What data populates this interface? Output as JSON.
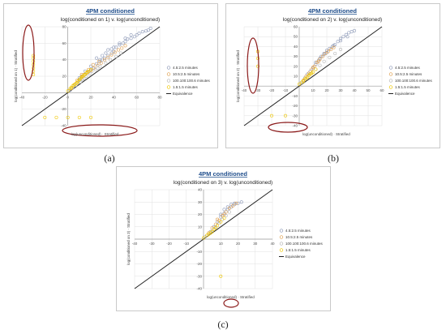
{
  "chart_data": [
    {
      "type": "scatter",
      "title": "4PM conditioned",
      "subtitle": "log(conditioned on 1) v. log(unconditioned)",
      "xlabel": "log(unconditioned) · Stratified",
      "ylabel": "log(conditioned on 1) · Stratified",
      "xlim": [
        -40,
        80
      ],
      "ylim": [
        -40,
        80
      ],
      "x_ticks": [
        "-40",
        "-20",
        "0",
        "20",
        "40",
        "60",
        "80"
      ],
      "y_ticks": [
        "-40",
        "-20",
        "20",
        "40",
        "60",
        "80"
      ],
      "grid": true,
      "legend_position": "right",
      "series": [
        {
          "name": "4.5:2.5 minutes",
          "color": "#8e9ab8",
          "points": [
            [
              2,
              3
            ],
            [
              5,
              8
            ],
            [
              8,
              12
            ],
            [
              10,
              15
            ],
            [
              12,
              20
            ],
            [
              15,
              22
            ],
            [
              18,
              25
            ],
            [
              20,
              28
            ],
            [
              22,
              30
            ],
            [
              25,
              35
            ],
            [
              28,
              38
            ],
            [
              30,
              40
            ],
            [
              32,
              42
            ],
            [
              35,
              45
            ],
            [
              38,
              48
            ],
            [
              40,
              50
            ],
            [
              42,
              55
            ],
            [
              45,
              58
            ],
            [
              48,
              60
            ],
            [
              50,
              62
            ],
            [
              52,
              65
            ],
            [
              55,
              66
            ],
            [
              58,
              68
            ],
            [
              60,
              70
            ],
            [
              62,
              72
            ],
            [
              65,
              74
            ],
            [
              68,
              75
            ],
            [
              70,
              76
            ],
            [
              72,
              78
            ],
            [
              30,
              45
            ],
            [
              25,
              42
            ],
            [
              35,
              52
            ],
            [
              40,
              55
            ],
            [
              20,
              32
            ],
            [
              15,
              26
            ],
            [
              10,
              18
            ],
            [
              45,
              60
            ],
            [
              50,
              66
            ],
            [
              55,
              70
            ],
            [
              28,
              40
            ],
            [
              33,
              48
            ],
            [
              38,
              53
            ]
          ]
        },
        {
          "name": "10.5:2.5 minutes",
          "color": "#e0a050",
          "points": [
            [
              3,
              5
            ],
            [
              6,
              10
            ],
            [
              9,
              14
            ],
            [
              12,
              18
            ],
            [
              14,
              22
            ],
            [
              17,
              24
            ],
            [
              20,
              27
            ],
            [
              23,
              30
            ],
            [
              26,
              33
            ],
            [
              29,
              36
            ],
            [
              32,
              40
            ],
            [
              35,
              43
            ],
            [
              38,
              46
            ],
            [
              41,
              49
            ],
            [
              44,
              52
            ],
            [
              47,
              54
            ],
            [
              50,
              57
            ],
            [
              18,
              28
            ],
            [
              22,
              34
            ],
            [
              27,
              38
            ],
            [
              12,
              22
            ],
            [
              8,
              15
            ]
          ]
        },
        {
          "name": "100.100:100.6 minutes",
          "color": "#b5b5b5",
          "points": [
            [
              1,
              2
            ],
            [
              4,
              6
            ],
            [
              7,
              9
            ],
            [
              11,
              13
            ],
            [
              14,
              17
            ],
            [
              16,
              20
            ],
            [
              19,
              23
            ],
            [
              24,
              28
            ],
            [
              28,
              32
            ],
            [
              33,
              36
            ],
            [
              37,
              40
            ],
            [
              42,
              44
            ],
            [
              46,
              48
            ],
            [
              9,
              12
            ],
            [
              13,
              16
            ],
            [
              21,
              26
            ],
            [
              26,
              30
            ]
          ]
        },
        {
          "name": "1.5:1.5 minutes",
          "color": "#f0c800",
          "points": [
            [
              0,
              2
            ],
            [
              2,
              5
            ],
            [
              4,
              8
            ],
            [
              6,
              10
            ],
            [
              8,
              12
            ],
            [
              10,
              16
            ],
            [
              12,
              19
            ],
            [
              14,
              21
            ],
            [
              16,
              24
            ],
            [
              18,
              26
            ],
            [
              20,
              28
            ],
            [
              5,
              9
            ],
            [
              7,
              11
            ],
            [
              9,
              14
            ],
            [
              11,
              17
            ],
            [
              13,
              20
            ],
            [
              3,
              6
            ],
            [
              15,
              22
            ],
            [
              17,
              25
            ],
            [
              -30,
              30
            ],
            [
              -30,
              34
            ],
            [
              -30,
              38
            ],
            [
              -30,
              26
            ],
            [
              -30,
              22
            ],
            [
              -30,
              45
            ],
            [
              -30,
              42
            ],
            [
              -20,
              -30
            ],
            [
              -10,
              -30
            ],
            [
              0,
              -30
            ],
            [
              10,
              -30
            ],
            [
              20,
              -30
            ]
          ]
        }
      ],
      "annotations": [
        "equivalence line",
        "circled outliers"
      ]
    },
    {
      "type": "scatter",
      "title": "4PM conditioned",
      "subtitle": "log(conditioned on 2) v. log(unconditioned)",
      "xlabel": "log(unconditioned) · Stratified",
      "ylabel": "log(conditioned on 2) · Stratified",
      "xlim": [
        -40,
        60
      ],
      "ylim": [
        -40,
        60
      ],
      "x_ticks": [
        "-40",
        "-30",
        "-20",
        "-10",
        "10",
        "20",
        "30",
        "40",
        "50",
        "60"
      ],
      "y_ticks": [
        "-40",
        "-30",
        "-20",
        "-10",
        "10",
        "20",
        "30",
        "40",
        "50",
        "60"
      ],
      "grid": true,
      "legend_position": "right",
      "series": [
        {
          "name": "4.5:2.5 minutes",
          "color": "#8e9ab8",
          "points": [
            [
              2,
              4
            ],
            [
              4,
              8
            ],
            [
              6,
              12
            ],
            [
              8,
              15
            ],
            [
              10,
              18
            ],
            [
              12,
              22
            ],
            [
              14,
              26
            ],
            [
              16,
              30
            ],
            [
              18,
              33
            ],
            [
              20,
              36
            ],
            [
              22,
              38
            ],
            [
              24,
              40
            ],
            [
              26,
              42
            ],
            [
              28,
              45
            ],
            [
              30,
              48
            ],
            [
              32,
              50
            ],
            [
              34,
              52
            ],
            [
              36,
              54
            ],
            [
              38,
              55
            ],
            [
              40,
              56
            ],
            [
              15,
              28
            ],
            [
              20,
              34
            ],
            [
              25,
              41
            ],
            [
              30,
              46
            ],
            [
              35,
              50
            ],
            [
              12,
              24
            ],
            [
              18,
              32
            ]
          ]
        },
        {
          "name": "10.5:2.5 minutes",
          "color": "#e0a050",
          "points": [
            [
              3,
              6
            ],
            [
              5,
              10
            ],
            [
              7,
              13
            ],
            [
              9,
              17
            ],
            [
              11,
              20
            ],
            [
              13,
              24
            ],
            [
              15,
              27
            ],
            [
              17,
              30
            ],
            [
              19,
              33
            ],
            [
              21,
              35
            ],
            [
              23,
              37
            ],
            [
              25,
              39
            ],
            [
              10,
              19
            ],
            [
              14,
              25
            ]
          ]
        },
        {
          "name": "100.100:100.6 minutes",
          "color": "#b5b5b5",
          "points": [
            [
              1,
              3
            ],
            [
              3,
              5
            ],
            [
              6,
              9
            ],
            [
              9,
              13
            ],
            [
              12,
              17
            ],
            [
              15,
              21
            ],
            [
              18,
              25
            ],
            [
              22,
              29
            ],
            [
              26,
              33
            ],
            [
              30,
              37
            ]
          ]
        },
        {
          "name": "1.5:1.5 minutes",
          "color": "#f0c800",
          "points": [
            [
              0,
              2
            ],
            [
              2,
              4
            ],
            [
              4,
              7
            ],
            [
              6,
              9
            ],
            [
              8,
              12
            ],
            [
              10,
              14
            ],
            [
              12,
              17
            ],
            [
              5,
              8
            ],
            [
              7,
              11
            ],
            [
              9,
              13
            ],
            [
              3,
              5
            ],
            [
              -30,
              35
            ],
            [
              -30,
              28
            ],
            [
              -30,
              20
            ],
            [
              -20,
              -30
            ],
            [
              -10,
              -30
            ]
          ]
        }
      ],
      "annotations": [
        "equivalence line",
        "circled outliers"
      ]
    },
    {
      "type": "scatter",
      "title": "4PM conditioned",
      "subtitle": "log(conditioned on 3) v. log(unconditioned)",
      "xlabel": "log(unconditioned) · Stratified",
      "ylabel": "log(conditioned on 3) · Stratified",
      "xlim": [
        -40,
        40
      ],
      "ylim": [
        -40,
        40
      ],
      "x_ticks": [
        "-40",
        "-30",
        "-20",
        "-10",
        "10",
        "20",
        "30",
        "40"
      ],
      "y_ticks": [
        "-40",
        "-30",
        "-20",
        "-10",
        "10",
        "20",
        "30",
        "40"
      ],
      "grid": true,
      "legend_position": "right",
      "series": [
        {
          "name": "4.5:2.5 minutes",
          "color": "#8e9ab8",
          "points": [
            [
              2,
              3
            ],
            [
              4,
              6
            ],
            [
              6,
              10
            ],
            [
              8,
              14
            ],
            [
              10,
              18
            ],
            [
              12,
              21
            ],
            [
              14,
              24
            ],
            [
              16,
              26
            ],
            [
              18,
              28
            ],
            [
              20,
              29
            ],
            [
              22,
              30
            ],
            [
              10,
              20
            ],
            [
              14,
              26
            ],
            [
              16,
              28
            ],
            [
              12,
              24
            ],
            [
              18,
              29
            ]
          ]
        },
        {
          "name": "10.5:2.5 minutes",
          "color": "#e0a050",
          "points": [
            [
              3,
              5
            ],
            [
              5,
              9
            ],
            [
              7,
              12
            ],
            [
              9,
              15
            ],
            [
              11,
              19
            ],
            [
              13,
              22
            ],
            [
              15,
              25
            ],
            [
              17,
              27
            ],
            [
              19,
              29
            ],
            [
              8,
              16
            ],
            [
              12,
              20
            ]
          ]
        },
        {
          "name": "100.100:100.6 minutes",
          "color": "#b5b5b5",
          "points": [
            [
              1,
              2
            ],
            [
              3,
              4
            ],
            [
              5,
              7
            ],
            [
              7,
              10
            ],
            [
              9,
              13
            ],
            [
              11,
              16
            ],
            [
              13,
              19
            ],
            [
              15,
              22
            ]
          ]
        },
        {
          "name": "1.5:1.5 minutes",
          "color": "#f0c800",
          "points": [
            [
              0,
              1
            ],
            [
              2,
              3
            ],
            [
              4,
              5
            ],
            [
              6,
              8
            ],
            [
              8,
              11
            ],
            [
              10,
              14
            ],
            [
              12,
              17
            ],
            [
              5,
              6
            ],
            [
              7,
              9
            ],
            [
              3,
              4
            ],
            [
              10,
              -30
            ]
          ]
        }
      ],
      "annotations": [
        "equivalence line",
        "circled outlier"
      ]
    }
  ],
  "legend_equivalence_label": "Equivalence",
  "captions": [
    "(a)",
    "(b)",
    "(c)"
  ],
  "colors": {
    "equivalence_line": "#222222",
    "outlier_ring": "#8b1a1a",
    "grid": "#e0e0e0",
    "axis": "#999999"
  }
}
